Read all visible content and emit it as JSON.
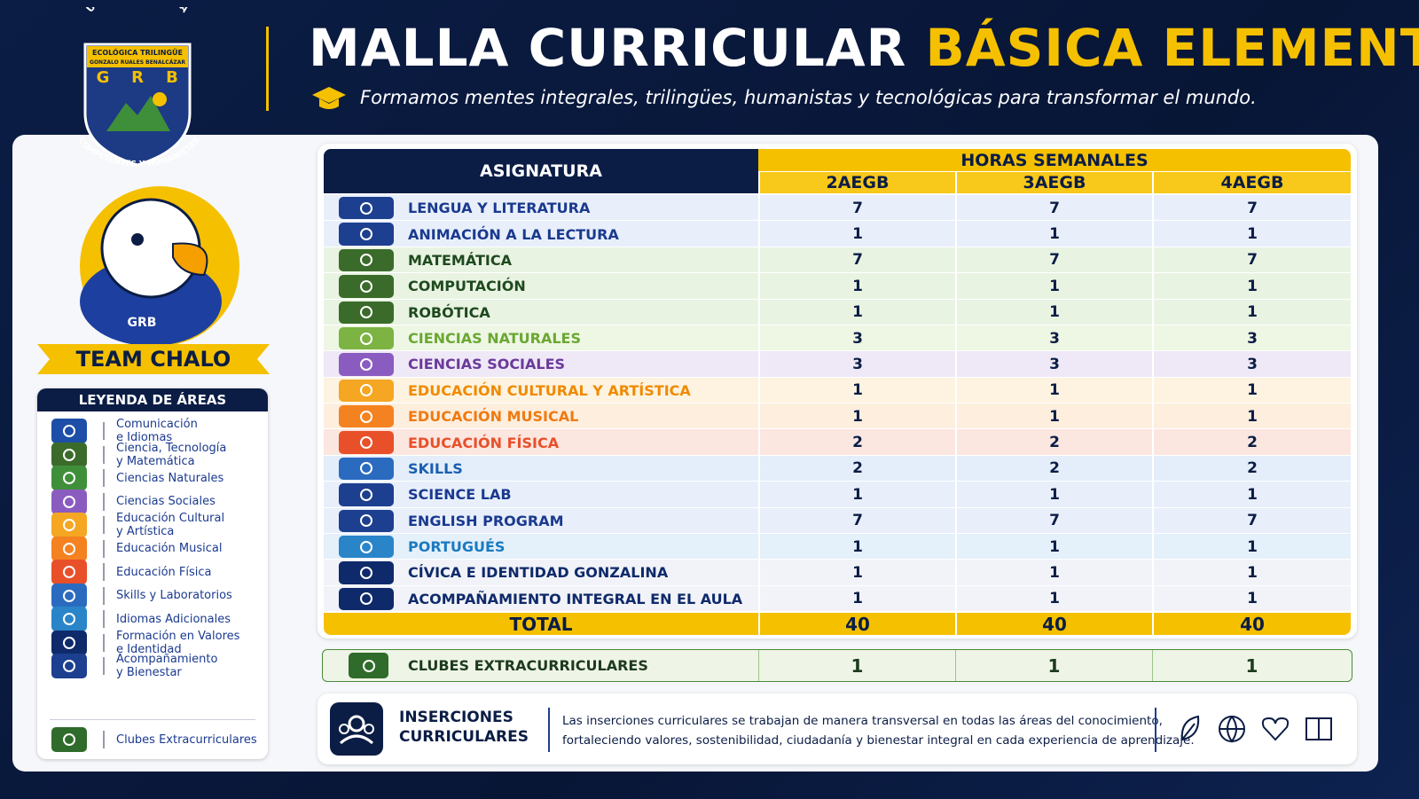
{
  "header": {
    "logo_top": "UNIDAD EDUCATIVA",
    "logo_line1": "ECOLÓGICA TRILINGÜE",
    "logo_line2": "GONZALO RUALES BENALCÁZAR",
    "logo_letters": [
      "G",
      "R",
      "B"
    ],
    "logo_bottom": "COMPETENTES Y HUMANISTAS",
    "title_white": "MALLA CURRICULAR",
    "title_yellow": "BÁSICA ELEMENTAL",
    "subtitle": "Formamos mentes integrales, trilingües, humanistas y tecnológicas para transformar el mundo."
  },
  "mascot": {
    "badge": "GRB",
    "banner": "TEAM CHALO"
  },
  "legend": {
    "title": "LEYENDA DE ÁREAS",
    "items": [
      [
        "Comunicación",
        "e Idiomas"
      ],
      [
        "Ciencia, Tecnología",
        "y Matemática"
      ],
      [
        "Ciencias Naturales"
      ],
      [
        "Ciencias Sociales"
      ],
      [
        "Educación Cultural",
        "y Artística"
      ],
      [
        "Educación Musical"
      ],
      [
        "Educación Física"
      ],
      [
        "Skills y Laboratorios"
      ],
      [
        "Idiomas Adicionales"
      ],
      [
        "Formación en Valores",
        "e Identidad"
      ],
      [
        "Acompañamiento",
        "y Bienestar"
      ],
      [
        "Clubes Extracurriculares"
      ]
    ]
  },
  "table": {
    "header_subject": "ASIGNATURA",
    "header_hours": "HORAS SEMANALES",
    "columns": [
      "2AEGB",
      "3AEGB",
      "4AEGB"
    ],
    "rows": [
      {
        "subject": "LENGUA Y LITERATURA",
        "hours": [
          7,
          7,
          7
        ]
      },
      {
        "subject": "ANIMACIÓN A LA LECTURA",
        "hours": [
          1,
          1,
          1
        ]
      },
      {
        "subject": "MATEMÁTICA",
        "hours": [
          7,
          7,
          7
        ]
      },
      {
        "subject": "COMPUTACIÓN",
        "hours": [
          1,
          1,
          1
        ]
      },
      {
        "subject": "ROBÓTICA",
        "hours": [
          1,
          1,
          1
        ]
      },
      {
        "subject": "CIENCIAS NATURALES",
        "hours": [
          3,
          3,
          3
        ]
      },
      {
        "subject": "CIENCIAS SOCIALES",
        "hours": [
          3,
          3,
          3
        ]
      },
      {
        "subject": "EDUCACIÓN CULTURAL Y ARTÍSTICA",
        "hours": [
          1,
          1,
          1
        ]
      },
      {
        "subject": "EDUCACIÓN MUSICAL",
        "hours": [
          1,
          1,
          1
        ]
      },
      {
        "subject": "EDUCACIÓN FÍSICA",
        "hours": [
          2,
          2,
          2
        ]
      },
      {
        "subject": "SKILLS",
        "hours": [
          2,
          2,
          2
        ]
      },
      {
        "subject": "SCIENCE LAB",
        "hours": [
          1,
          1,
          1
        ]
      },
      {
        "subject": "ENGLISH PROGRAM",
        "hours": [
          7,
          7,
          7
        ]
      },
      {
        "subject": "PORTUGUÉS",
        "hours": [
          1,
          1,
          1
        ]
      },
      {
        "subject": "CÍVICA E IDENTIDAD GONZALINA",
        "hours": [
          1,
          1,
          1
        ]
      },
      {
        "subject": "ACOMPAÑAMIENTO INTEGRAL EN EL AULA",
        "hours": [
          1,
          1,
          1
        ]
      }
    ],
    "total": {
      "label": "TOTAL",
      "hours": [
        40,
        40,
        40
      ]
    }
  },
  "clubs": {
    "label": "CLUBES EXTRACURRICULARES",
    "hours": [
      1,
      1,
      1
    ]
  },
  "insertions": {
    "title": [
      "INSERCIONES",
      "CURRICULARES"
    ],
    "text": [
      "Las inserciones curriculares se trabajan de manera transversal en todas las áreas del conocimiento,",
      "fortaleciendo valores, sostenibilidad, ciudadanía y bienestar integral en cada experiencia de aprendizaje."
    ]
  }
}
